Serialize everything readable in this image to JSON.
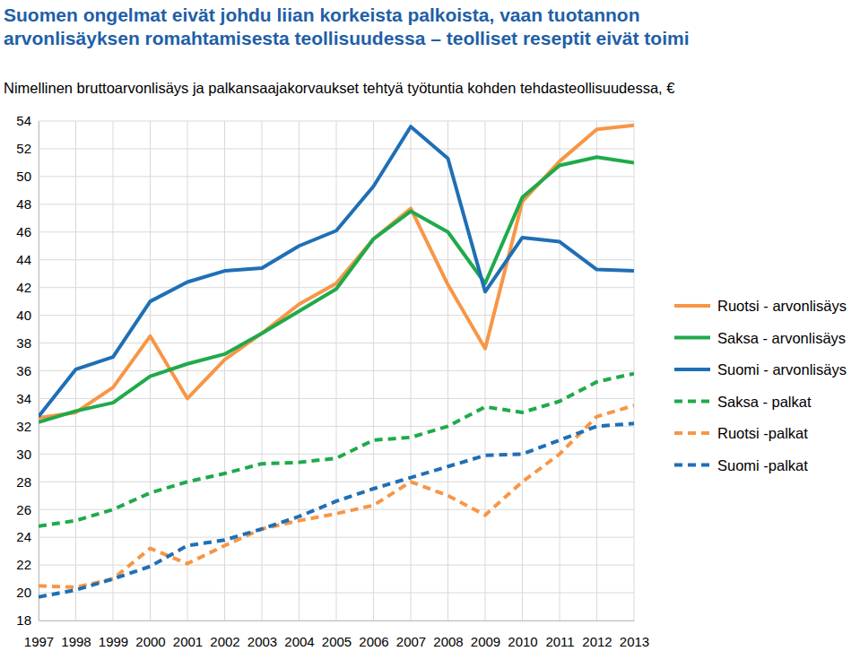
{
  "chart_data": {
    "type": "line",
    "title": [
      "Suomen ongelmat eivät johdu  liian korkeista palkoista, vaan tuotannon",
      "arvonlisäyksen romahtamisesta teollisuudessa – teolliset reseptit eivät toimi"
    ],
    "subtitle": "Nimellinen bruttoarvonlisäys ja palkansaajakorvaukset tehtyä työtuntia kohden tehdasteollisuudessa, €",
    "categories": [
      "1997",
      "1998",
      "1999",
      "2000",
      "2001",
      "2002",
      "2003",
      "2004",
      "2005",
      "2006",
      "2007",
      "2008",
      "2009",
      "2010",
      "2011",
      "2012",
      "2013"
    ],
    "ylim": [
      18,
      54
    ],
    "yticks": [
      18,
      20,
      22,
      24,
      26,
      28,
      30,
      32,
      34,
      36,
      38,
      40,
      42,
      44,
      46,
      48,
      50,
      52,
      54
    ],
    "grid": true,
    "legend": "right",
    "series": [
      {
        "name": "Ruotsi - arvonlisäys",
        "color": "#f79646",
        "line_style": "solid",
        "values": [
          32.6,
          33.0,
          34.8,
          38.5,
          34.0,
          36.8,
          38.7,
          40.8,
          42.3,
          45.5,
          47.7,
          42.2,
          37.6,
          48.2,
          51.1,
          53.4,
          53.7
        ]
      },
      {
        "name": "Saksa - arvonlisäys",
        "color": "#1faa4b",
        "line_style": "solid",
        "values": [
          32.3,
          33.1,
          33.7,
          35.6,
          36.5,
          37.2,
          38.7,
          40.3,
          41.9,
          45.5,
          47.5,
          46.0,
          42.3,
          48.5,
          50.8,
          51.4,
          51.0
        ]
      },
      {
        "name": "Suomi - arvonlisäys",
        "color": "#1f6fb5",
        "line_style": "solid",
        "values": [
          32.7,
          36.1,
          37.0,
          41.0,
          42.4,
          43.2,
          43.4,
          45.0,
          46.1,
          49.3,
          53.6,
          51.3,
          41.7,
          45.6,
          45.3,
          43.3,
          43.2
        ]
      },
      {
        "name": "Saksa - palkat",
        "color": "#1faa4b",
        "line_style": "dashed",
        "values": [
          24.8,
          25.2,
          26.0,
          27.2,
          28.0,
          28.6,
          29.3,
          29.4,
          29.7,
          31.0,
          31.2,
          32.0,
          33.4,
          33.0,
          33.8,
          35.2,
          35.8
        ]
      },
      {
        "name": "Ruotsi -palkat",
        "color": "#f79646",
        "line_style": "dashed",
        "values": [
          20.5,
          20.4,
          21.0,
          23.2,
          22.1,
          23.4,
          24.6,
          25.2,
          25.7,
          26.3,
          28.0,
          27.0,
          25.6,
          28.0,
          30.0,
          32.7,
          33.5
        ]
      },
      {
        "name": "Suomi -palkat",
        "color": "#1f6fb5",
        "line_style": "dashed",
        "values": [
          19.7,
          20.2,
          21.0,
          21.9,
          23.4,
          23.8,
          24.6,
          25.5,
          26.6,
          27.5,
          28.3,
          29.1,
          29.9,
          30.0,
          31.0,
          32.0,
          32.2
        ]
      }
    ]
  }
}
